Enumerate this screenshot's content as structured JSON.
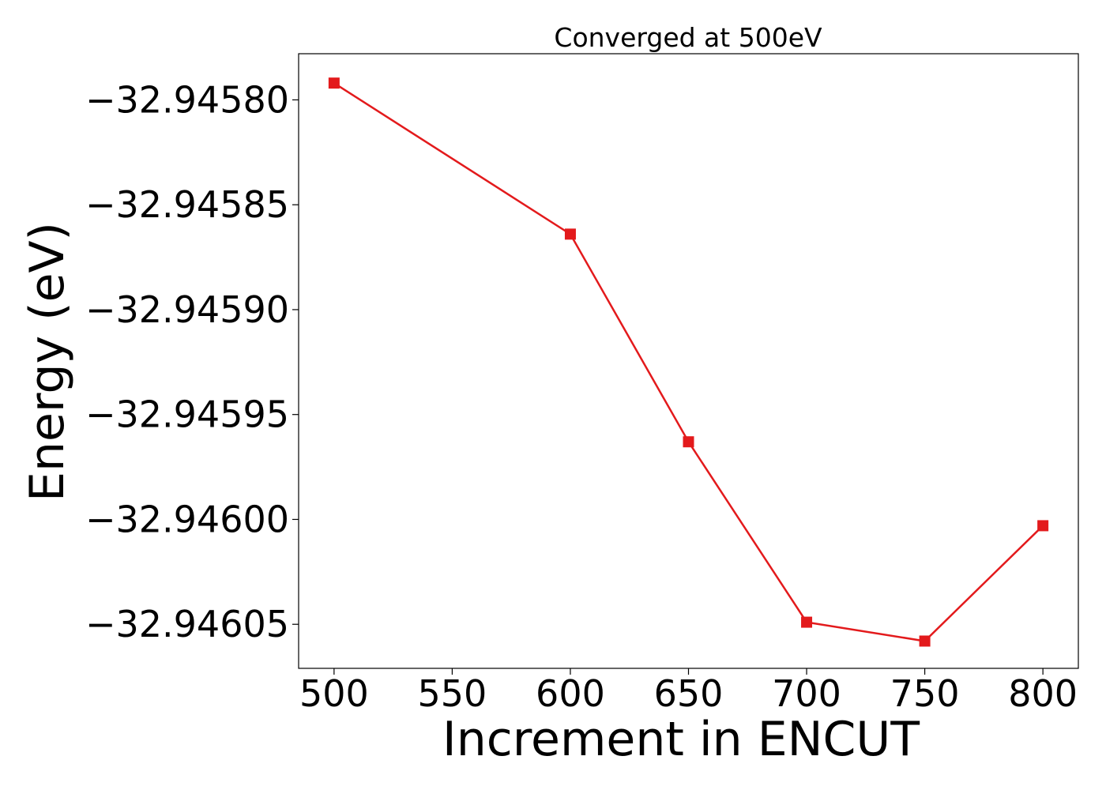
{
  "chart_data": {
    "type": "line",
    "title": "Converged at 500eV",
    "xlabel": "Increment in ENCUT",
    "ylabel": "Energy (eV)",
    "x": [
      500,
      600,
      650,
      700,
      750,
      800
    ],
    "series": [
      {
        "values": [
          -32.945792,
          -32.945864,
          -32.945963,
          -32.946049,
          -32.946058,
          -32.946003
        ],
        "color": "#e31a1c",
        "marker": "square"
      }
    ],
    "xlim": [
      485,
      815
    ],
    "ylim": [
      -32.946071,
      -32.945778
    ],
    "xticks": [
      500,
      550,
      600,
      650,
      700,
      750,
      800
    ],
    "xtick_labels": [
      "500",
      "550",
      "600",
      "650",
      "700",
      "750",
      "800"
    ],
    "yticks": [
      -32.9458,
      -32.94585,
      -32.9459,
      -32.94595,
      -32.946,
      -32.94605
    ],
    "ytick_labels": [
      "−32.94580",
      "−32.94585",
      "−32.94590",
      "−32.94595",
      "−32.94600",
      "−32.94605"
    ],
    "grid": false,
    "legend": "none"
  }
}
